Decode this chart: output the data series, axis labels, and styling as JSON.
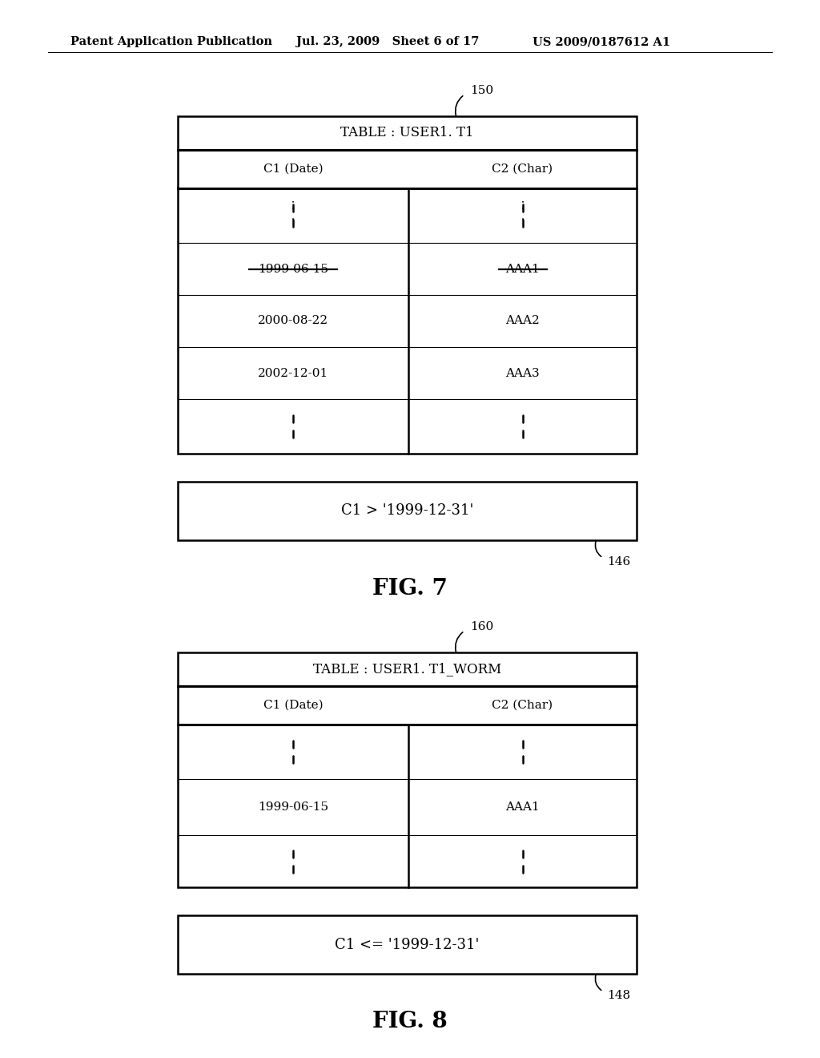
{
  "bg_color": "#ffffff",
  "header_text": "Patent Application Publication",
  "header_date": "Jul. 23, 2009   Sheet 6 of 17",
  "header_patent": "US 2009/0187612 A1",
  "fig7_label": "FIG. 7",
  "fig8_label": "FIG. 8",
  "table1_title": "TABLE : USER1. T1",
  "table1_label": "150",
  "table1_col1": "C1 (Date)",
  "table1_col2": "C2 (Char)",
  "table1_row_strikethrough": [
    "1999-06-15",
    "AAA1"
  ],
  "table1_rows": [
    "2000-08-22",
    "2002-12-01"
  ],
  "table1_rows_c2": [
    "AAA2",
    "AAA3"
  ],
  "condition1_text": "C1 > '1999-12-31'",
  "condition1_label": "146",
  "table2_title": "TABLE : USER1. T1_WORM",
  "table2_label": "160",
  "table2_col1": "C1 (Date)",
  "table2_col2": "C2 (Char)",
  "table2_data_row": [
    "1999-06-15",
    "AAA1"
  ],
  "condition2_text": "C1 <= '1999-12-31'",
  "condition2_label": "148",
  "line_color": "#000000",
  "text_color": "#000000",
  "font_size_header": 10.5,
  "font_size_table_title": 12,
  "font_size_table_data": 11,
  "font_size_fig_label": 20,
  "font_size_condition": 12,
  "font_size_label": 11
}
